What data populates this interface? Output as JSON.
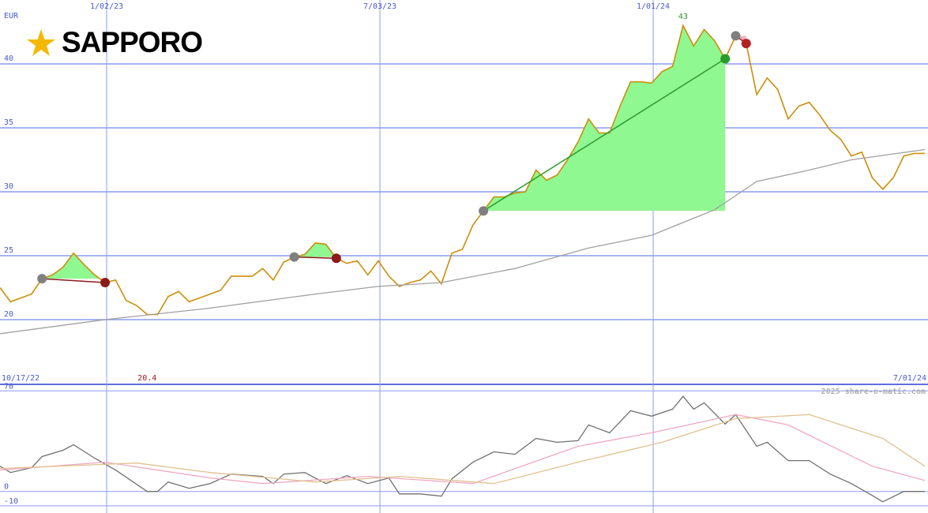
{
  "chart_data": [
    {
      "type": "line",
      "title": "SAPPORO",
      "y_unit": "EUR",
      "x": [
        0,
        1,
        2,
        3,
        4,
        5,
        6,
        7,
        8,
        9,
        10,
        11,
        12,
        13,
        14,
        15,
        16,
        17,
        18,
        19,
        20,
        21,
        22,
        23,
        24,
        25,
        26,
        27,
        28,
        29,
        30,
        31,
        32,
        33,
        34,
        35,
        36,
        37,
        38,
        39,
        40,
        41,
        42,
        43,
        44,
        45,
        46,
        47,
        48,
        49,
        50,
        51,
        52,
        53,
        54,
        55,
        56,
        57,
        58,
        59,
        60,
        61,
        62,
        63,
        64,
        65,
        66,
        67,
        68,
        69,
        70,
        71,
        72,
        73,
        74,
        75,
        76,
        77,
        78,
        79,
        80,
        81,
        82,
        83,
        84,
        85,
        86,
        87,
        88
      ],
      "series": [
        {
          "color": "#cc8e0a",
          "values": [
            22.5,
            21.4,
            21.7,
            22.0,
            23.2,
            23.5,
            24.1,
            25.2,
            24.3,
            23.5,
            22.9,
            23.1,
            21.5,
            21.1,
            20.4,
            20.4,
            21.8,
            22.2,
            21.4,
            21.7,
            22.0,
            22.3,
            23.4,
            23.4,
            23.4,
            24.0,
            23.1,
            24.5,
            24.9,
            25.1,
            26.0,
            25.9,
            24.8,
            24.4,
            24.6,
            23.5,
            24.6,
            23.4,
            22.6,
            22.9,
            23.1,
            23.8,
            22.8,
            25.2,
            25.5,
            27.4,
            28.5,
            29.6,
            29.6,
            29.9,
            30.0,
            31.7,
            30.9,
            31.3,
            32.5,
            33.9,
            35.7,
            34.6,
            34.6,
            36.7,
            38.6,
            38.6,
            38.5,
            39.4,
            39.8,
            43.0,
            41.4,
            42.7,
            41.8,
            40.4,
            42.2,
            41.6,
            37.6,
            38.9,
            38.0,
            35.7,
            36.7,
            37.0,
            36.0,
            34.8,
            34.1,
            32.8,
            33.1,
            31.1,
            30.2,
            31.1,
            32.8,
            33.0,
            33.0
          ]
        },
        {
          "color": "#a0a0a0",
          "x": [
            0,
            10,
            20,
            30,
            36,
            42,
            49,
            56,
            62,
            68,
            72,
            77,
            81,
            88
          ],
          "values": [
            18.9,
            20.0,
            20.9,
            22.0,
            22.6,
            22.9,
            24.0,
            25.6,
            26.6,
            28.6,
            30.8,
            31.7,
            32.5,
            33.3
          ]
        }
      ],
      "trades": [
        {
          "start": 4,
          "end": 10,
          "entry": 23.2,
          "exit": 22.9,
          "color": "#8b1a1a"
        },
        {
          "start": 28,
          "end": 32,
          "entry": 24.9,
          "exit": 24.8,
          "color": "#8b1a1a"
        },
        {
          "start": 46,
          "end": 69,
          "entry": 28.5,
          "exit": 40.4,
          "color": "#2a9a2a"
        },
        {
          "start": 70,
          "end": 71,
          "entry": 42.2,
          "exit": 41.6,
          "color": "#b22222"
        }
      ],
      "max": {
        "x": 65,
        "value": 43
      },
      "min": {
        "x": 14,
        "value": 20.4
      },
      "xlim": [
        0,
        88.3
      ],
      "ylim": [
        15,
        45
      ],
      "yticks": [
        20,
        25,
        30,
        35,
        40
      ],
      "xticks": [
        {
          "value": 10.15,
          "label": "1/02/23"
        },
        {
          "value": 36.15,
          "label": "7/03/23"
        },
        {
          "value": 62.15,
          "label": "1/01/24"
        }
      ],
      "range_labels": [
        "10/17/22",
        "7/01/24"
      ],
      "grid": true
    },
    {
      "type": "line",
      "watermark": "2025 share-o-matic.com",
      "series": [
        {
          "color": "#707070",
          "x": [
            0,
            1,
            3,
            4,
            6,
            7,
            9,
            11,
            14,
            15,
            16,
            18,
            20,
            22,
            25,
            26,
            27,
            29,
            31,
            33,
            35,
            37,
            38,
            40,
            42,
            43,
            45,
            47,
            49,
            51,
            53,
            55,
            56,
            58,
            60,
            62,
            64,
            65,
            66,
            67,
            69,
            70,
            72,
            73,
            75,
            77,
            79,
            81,
            83,
            84,
            86,
            88
          ],
          "values": [
            17.6,
            13.2,
            16.5,
            24.3,
            28.7,
            32.5,
            23.2,
            14.9,
            0,
            0,
            6.6,
            2.2,
            5.5,
            12.1,
            10.5,
            5.5,
            12.1,
            13.2,
            5.5,
            11.0,
            5.5,
            9.4,
            -1.7,
            -1.7,
            -3.3,
            8.8,
            20.4,
            27.6,
            25.9,
            36.9,
            34.2,
            35.3,
            46.3,
            40.8,
            56.2,
            52.4,
            57.3,
            66.2,
            57.3,
            61.7,
            46.9,
            53.5,
            31.4,
            34.2,
            21.5,
            21.5,
            12.1,
            5.5,
            -2.8,
            -7.2,
            0,
            0
          ]
        },
        {
          "color": "#f0a8c0",
          "x": [
            0,
            10,
            20,
            25,
            35,
            45,
            55,
            62,
            70,
            75,
            83,
            88
          ],
          "values": [
            14.9,
            20.4,
            9.4,
            5.5,
            10.5,
            5.5,
            31.4,
            40.8,
            53.5,
            46.3,
            17.6,
            7.7
          ]
        },
        {
          "color": "#e0c090",
          "x": [
            0,
            13,
            20,
            30,
            38,
            47,
            55,
            63,
            70,
            77,
            84,
            88
          ],
          "values": [
            16.0,
            19.8,
            13.2,
            6.6,
            10.5,
            5.5,
            20.4,
            34.2,
            50.7,
            53.5,
            36.9,
            17.6
          ]
        }
      ],
      "xlim": [
        0,
        88.3
      ],
      "ylim": [
        -15,
        74
      ],
      "yticks": [
        70,
        0,
        -10
      ]
    }
  ]
}
